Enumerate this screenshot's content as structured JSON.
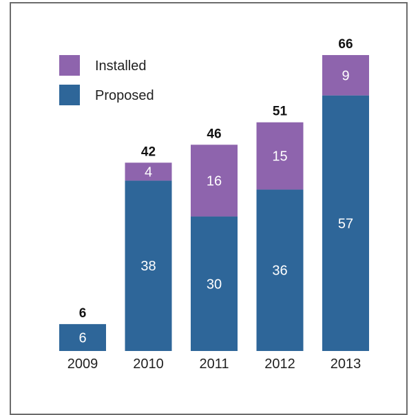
{
  "chart_data": {
    "type": "bar",
    "stacked": true,
    "categories": [
      "2009",
      "2010",
      "2011",
      "2012",
      "2013"
    ],
    "series": [
      {
        "name": "Proposed",
        "color": "#2e6699",
        "values": [
          6,
          38,
          30,
          36,
          57
        ]
      },
      {
        "name": "Installed",
        "color": "#8e64ad",
        "values": [
          0,
          4,
          16,
          15,
          9
        ]
      }
    ],
    "totals": [
      6,
      42,
      46,
      51,
      66
    ],
    "legend": {
      "placement": "top-left",
      "order": [
        "Installed",
        "Proposed"
      ]
    },
    "title": "",
    "xlabel": "",
    "ylabel": "",
    "ylim": [
      0,
      66
    ],
    "grid": false
  }
}
